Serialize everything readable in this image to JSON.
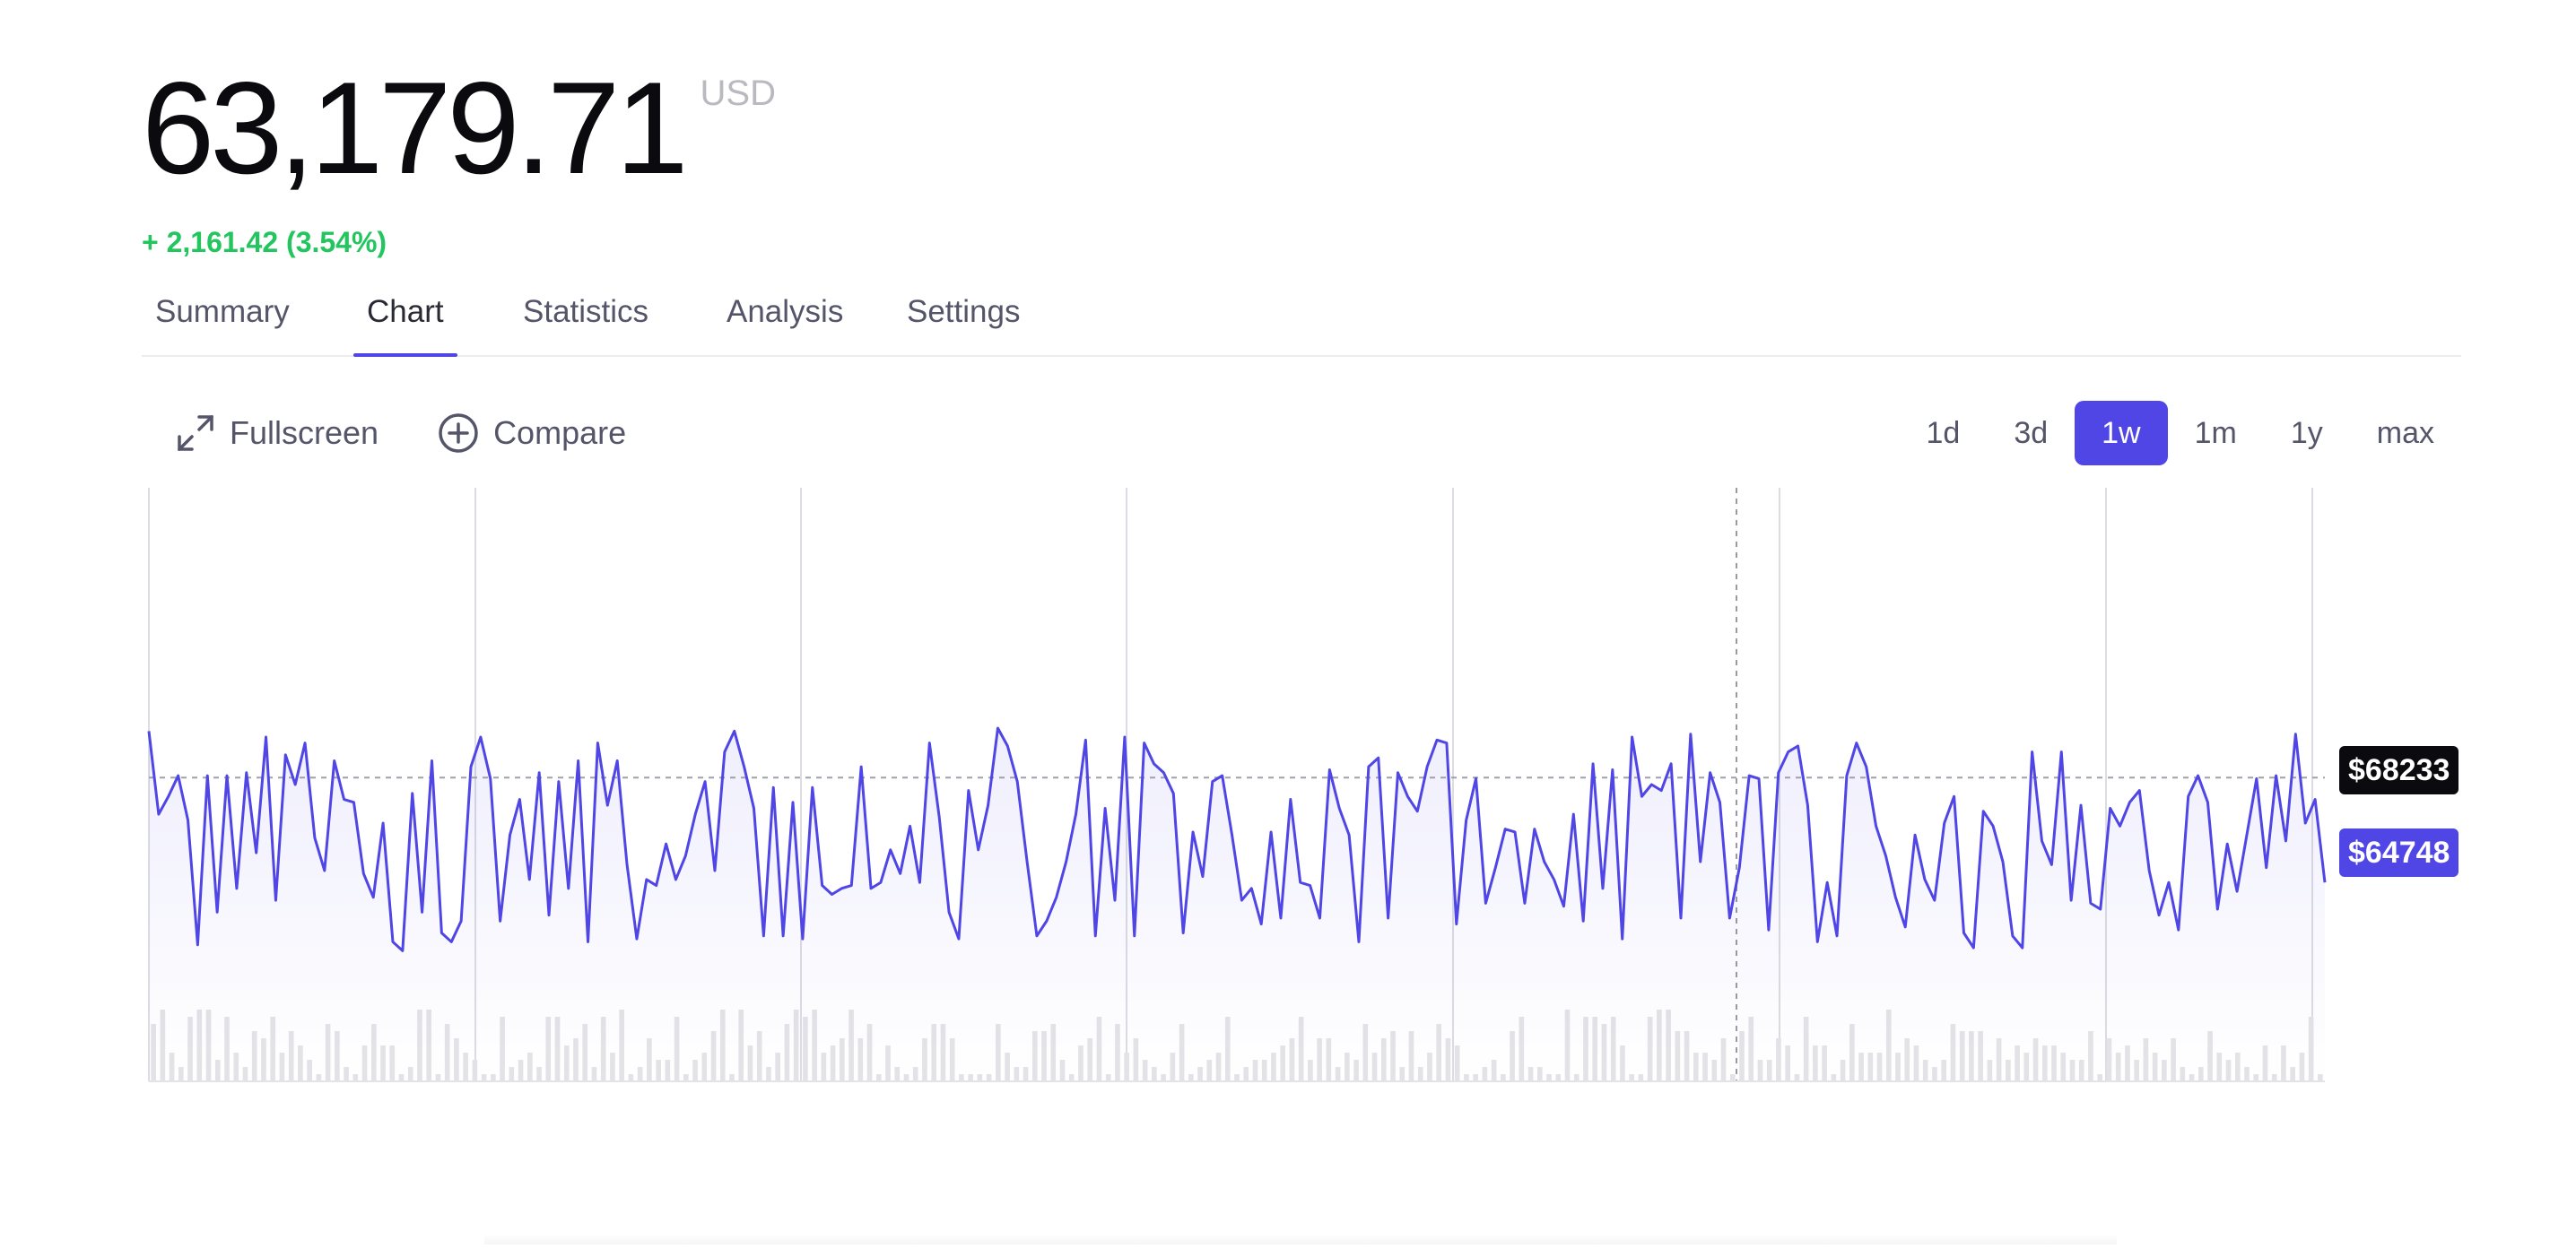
{
  "header": {
    "price": "63,179.71",
    "currency": "USD",
    "change": "+ 2,161.42 (3.54%)"
  },
  "tabs": [
    {
      "label": "Summary",
      "active": false
    },
    {
      "label": "Chart",
      "active": true
    },
    {
      "label": "Statistics",
      "active": false
    },
    {
      "label": "Analysis",
      "active": false
    },
    {
      "label": "Settings",
      "active": false
    }
  ],
  "toolbar": {
    "fullscreen_label": "Fullscreen",
    "fullscreen_icon": "expand-icon",
    "compare_label": "Compare",
    "compare_icon": "plus-circle-icon"
  },
  "ranges": [
    {
      "label": "1d",
      "active": false
    },
    {
      "label": "3d",
      "active": false
    },
    {
      "label": "1w",
      "active": true
    },
    {
      "label": "1m",
      "active": false
    },
    {
      "label": "1y",
      "active": false
    },
    {
      "label": "max",
      "active": false
    }
  ],
  "colors": {
    "accent": "#4f46e5",
    "positive": "#22c55e",
    "volume": "#e3e3e7",
    "grid": "#dcdce2",
    "reference_badge": "#0b0b0f"
  },
  "chart_data": {
    "type": "line",
    "title": "",
    "xlabel": "",
    "ylabel": "",
    "ylim": [
      58000,
      78000
    ],
    "reference_label": "$68233",
    "reference_value": 68233,
    "last_label": "$64748",
    "last_value": 64748,
    "legend": "none",
    "grid": "vertical",
    "series": [
      {
        "values": [
          69800,
          67000,
          67600,
          68300,
          66800,
          62600,
          68300,
          63700,
          68300,
          64500,
          68400,
          65700,
          69600,
          64100,
          69000,
          68000,
          69400,
          66200,
          65100,
          68800,
          67500,
          67400,
          65000,
          64200,
          66700,
          62700,
          62400,
          67700,
          63700,
          68800,
          63000,
          62700,
          63400,
          68600,
          69600,
          68200,
          63400,
          66300,
          67500,
          64800,
          68400,
          63600,
          68100,
          64500,
          68800,
          62700,
          69400,
          67300,
          68800,
          65300,
          62800,
          64800,
          64600,
          66000,
          64800,
          65600,
          67000,
          68100,
          65100,
          69100,
          69800,
          68600,
          67200,
          62900,
          67900,
          62900,
          67400,
          62800,
          67900,
          64600,
          64300,
          64500,
          64600,
          68600,
          64500,
          64700,
          65800,
          65000,
          66600,
          64700,
          69400,
          66900,
          63700,
          62800,
          67800,
          65800,
          67300,
          69900,
          69300,
          68100,
          65400,
          62900,
          63400,
          64200,
          65400,
          67000,
          69500,
          62900,
          67200,
          64100,
          69600,
          62900,
          69400,
          68700,
          68400,
          67700,
          63000,
          66400,
          64900,
          68100,
          68300,
          66300,
          64100,
          64500,
          63300,
          66400,
          63500,
          67500,
          64700,
          64600,
          63500,
          68500,
          67200,
          66300,
          62700,
          68600,
          68900,
          63500,
          68400,
          67600,
          67100,
          68600,
          69500,
          69400,
          63300,
          66800,
          68200,
          64000,
          65200,
          66500,
          66400,
          64000,
          66500,
          65400,
          64800,
          63900,
          67000,
          63400,
          68700,
          64500,
          68500,
          62800,
          69600,
          67600,
          68000,
          67800,
          68700,
          63500,
          69700,
          65400,
          68400,
          67400,
          63500,
          65200,
          68300,
          68200,
          63100,
          68400,
          69100,
          69300,
          67300,
          62700,
          64700,
          62900,
          68300,
          69400,
          68600,
          66600,
          65600,
          64200,
          63200,
          66300,
          64800,
          64100,
          66700,
          67600,
          63000,
          62500,
          67100,
          66600,
          65400,
          62900,
          62500,
          69100,
          66100,
          65300,
          69100,
          64100,
          67300,
          64000,
          63800,
          67200,
          66600,
          67400,
          67800,
          65100,
          63600,
          64700,
          63100,
          67600,
          68300,
          67400,
          63800,
          66000,
          64400,
          66300,
          68200,
          65200,
          68300,
          66100,
          69700,
          66700,
          67500,
          64700
        ],
        "color": "#4f46e5"
      }
    ],
    "volume": [
      8,
      10,
      4,
      2,
      9,
      10,
      10,
      3,
      9,
      4,
      2,
      7,
      6,
      9,
      4,
      7,
      5,
      3,
      1,
      8,
      7,
      2,
      1,
      5,
      8,
      5,
      5,
      1,
      2,
      10,
      10,
      1,
      8,
      6,
      4,
      3,
      1,
      1,
      9,
      2,
      3,
      4,
      2,
      9,
      9,
      5,
      6,
      8,
      2,
      9,
      4,
      10,
      1,
      2,
      6,
      3,
      3,
      9,
      1,
      3,
      4,
      7,
      10,
      1,
      10,
      5,
      7,
      2,
      4,
      8,
      10,
      9,
      10,
      4,
      5,
      6,
      10,
      6,
      8,
      1,
      5,
      2,
      1,
      2,
      6,
      8,
      8,
      6,
      1,
      1,
      1,
      1,
      8,
      4,
      2,
      2,
      7,
      7,
      8,
      3,
      1,
      5,
      6,
      9,
      1,
      8,
      4,
      6,
      3,
      2,
      1,
      4,
      8,
      1,
      2,
      3,
      4,
      9,
      1,
      2,
      3,
      3,
      4,
      5,
      6,
      9,
      3,
      6,
      6,
      2,
      4,
      3,
      8,
      4,
      6,
      7,
      2,
      7,
      2,
      4,
      8,
      6,
      5,
      1,
      1,
      2,
      3,
      1,
      7,
      9,
      2,
      2,
      1,
      1,
      10,
      1,
      9,
      9,
      8,
      9,
      5,
      1,
      1,
      9,
      10,
      10,
      7,
      7,
      4,
      4,
      3,
      6,
      1,
      7,
      9,
      3,
      3,
      6,
      5,
      1,
      9,
      5,
      5,
      1,
      3,
      8,
      4,
      4,
      4,
      10,
      4,
      6,
      5,
      3,
      2,
      3,
      8,
      7,
      7,
      7,
      3,
      6,
      3,
      5,
      4,
      6,
      5,
      5,
      4,
      3,
      3,
      7,
      1,
      6,
      4,
      5,
      3,
      6,
      4,
      3,
      6,
      2,
      1,
      2,
      7,
      4,
      3,
      4,
      2,
      1,
      5,
      1,
      5,
      2,
      4,
      9,
      1
    ]
  }
}
